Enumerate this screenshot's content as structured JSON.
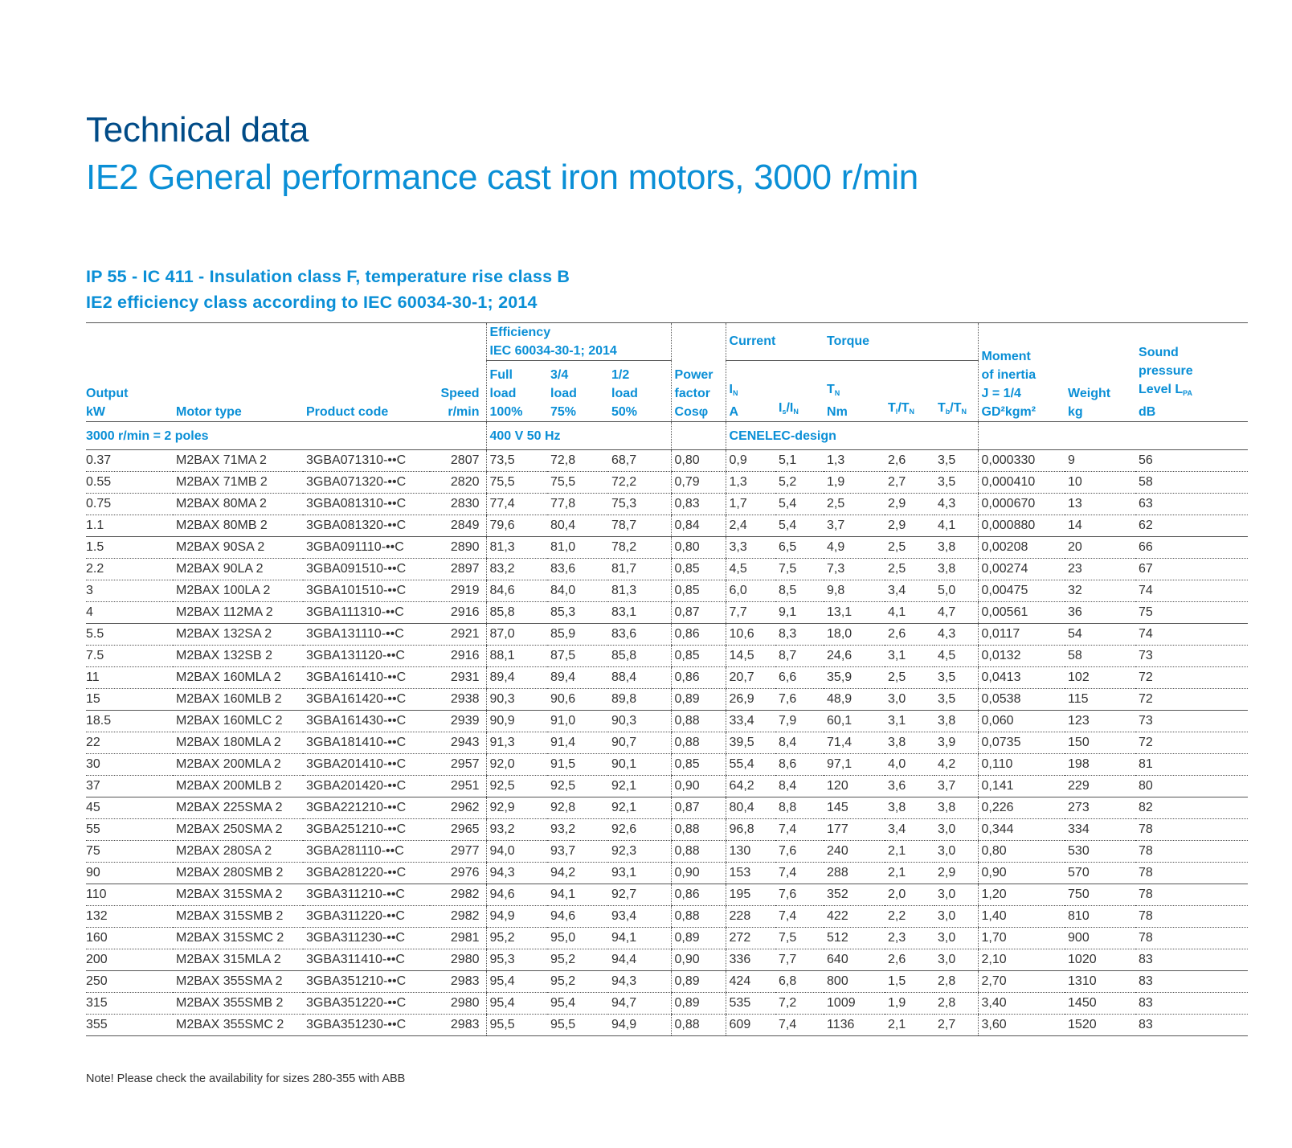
{
  "title": "Technical data",
  "subtitle": "IE2 General performance cast iron motors, 3000 r/min",
  "spec_lines": [
    "IP 55 - IC 411 - Insulation class F, temperature rise class B",
    "IE2 efficiency class according to IEC 60034-30-1; 2014"
  ],
  "headers": {
    "efficiency_group": "Efficiency",
    "efficiency_std": "IEC 60034-30-1; 2014",
    "current_group": "Current",
    "torque_group": "Torque",
    "output": [
      "Output",
      "kW"
    ],
    "motor_type": "Motor type",
    "product_code": "Product code",
    "speed": [
      "Speed",
      "r/min"
    ],
    "eff_full": [
      "Full",
      "load",
      "100%"
    ],
    "eff_34": [
      "3/4",
      "load",
      "75%"
    ],
    "eff_12": [
      "1/2",
      "load",
      "50%"
    ],
    "power_factor": [
      "Power",
      "factor",
      "Cosφ"
    ],
    "current_in": [
      "I",
      "N",
      "A"
    ],
    "current_is": [
      "I",
      "s",
      "/I",
      "N"
    ],
    "torque_tn": [
      "T",
      "N",
      "Nm"
    ],
    "torque_tl": [
      "T",
      "l",
      "/T",
      "N"
    ],
    "torque_tb": [
      "T",
      "b",
      "/T",
      "N"
    ],
    "moment": [
      "Moment",
      "of inertia",
      "J = 1/4",
      "GD²kgm²"
    ],
    "weight": [
      "Weight",
      "kg"
    ],
    "sound": [
      "Sound",
      "pressure",
      "Level L",
      "PA",
      "dB"
    ]
  },
  "section": {
    "poles": "3000 r/min = 2 poles",
    "supply": "400 V 50 Hz",
    "design": "CENELEC-design"
  },
  "rows": [
    [
      "0.37",
      "M2BAX 71MA 2",
      "3GBA071310-••C",
      "2807",
      "73,5",
      "72,8",
      "68,7",
      "0,80",
      "0,9",
      "5,1",
      "1,3",
      "2,6",
      "3,5",
      "0,000330",
      "9",
      "56"
    ],
    [
      "0.55",
      "M2BAX 71MB 2",
      "3GBA071320-••C",
      "2820",
      "75,5",
      "75,5",
      "72,2",
      "0,79",
      "1,3",
      "5,2",
      "1,9",
      "2,7",
      "3,5",
      "0,000410",
      "10",
      "58"
    ],
    [
      "0.75",
      "M2BAX 80MA 2",
      "3GBA081310-••C",
      "2830",
      "77,4",
      "77,8",
      "75,3",
      "0,83",
      "1,7",
      "5,4",
      "2,5",
      "2,9",
      "4,3",
      "0,000670",
      "13",
      "63"
    ],
    [
      "1.1",
      "M2BAX 80MB 2",
      "3GBA081320-••C",
      "2849",
      "79,6",
      "80,4",
      "78,7",
      "0,84",
      "2,4",
      "5,4",
      "3,7",
      "2,9",
      "4,1",
      "0,000880",
      "14",
      "62"
    ],
    [
      "1.5",
      "M2BAX 90SA 2",
      "3GBA091110-••C",
      "2890",
      "81,3",
      "81,0",
      "78,2",
      "0,80",
      "3,3",
      "6,5",
      "4,9",
      "2,5",
      "3,8",
      "0,00208",
      "20",
      "66"
    ],
    [
      "2.2",
      "M2BAX 90LA 2",
      "3GBA091510-••C",
      "2897",
      "83,2",
      "83,6",
      "81,7",
      "0,85",
      "4,5",
      "7,5",
      "7,3",
      "2,5",
      "3,8",
      "0,00274",
      "23",
      "67"
    ],
    [
      "3",
      "M2BAX 100LA 2",
      "3GBA101510-••C",
      "2919",
      "84,6",
      "84,0",
      "81,3",
      "0,85",
      "6,0",
      "8,5",
      "9,8",
      "3,4",
      "5,0",
      "0,00475",
      "32",
      "74"
    ],
    [
      "4",
      "M2BAX 112MA 2",
      "3GBA111310-••C",
      "2916",
      "85,8",
      "85,3",
      "83,1",
      "0,87",
      "7,7",
      "9,1",
      "13,1",
      "4,1",
      "4,7",
      "0,00561",
      "36",
      "75"
    ],
    [
      "5.5",
      "M2BAX 132SA 2",
      "3GBA131110-••C",
      "2921",
      "87,0",
      "85,9",
      "83,6",
      "0,86",
      "10,6",
      "8,3",
      "18,0",
      "2,6",
      "4,3",
      "0,0117",
      "54",
      "74"
    ],
    [
      "7.5",
      "M2BAX 132SB 2",
      "3GBA131120-••C",
      "2916",
      "88,1",
      "87,5",
      "85,8",
      "0,85",
      "14,5",
      "8,7",
      "24,6",
      "3,1",
      "4,5",
      "0,0132",
      "58",
      "73"
    ],
    [
      "11",
      "M2BAX 160MLA 2",
      "3GBA161410-••C",
      "2931",
      "89,4",
      "89,4",
      "88,4",
      "0,86",
      "20,7",
      "6,6",
      "35,9",
      "2,5",
      "3,5",
      "0,0413",
      "102",
      "72"
    ],
    [
      "15",
      "M2BAX 160MLB 2",
      "3GBA161420-••C",
      "2938",
      "90,3",
      "90,6",
      "89,8",
      "0,89",
      "26,9",
      "7,6",
      "48,9",
      "3,0",
      "3,5",
      "0,0538",
      "115",
      "72"
    ],
    [
      "18.5",
      "M2BAX 160MLC 2",
      "3GBA161430-••C",
      "2939",
      "90,9",
      "91,0",
      "90,3",
      "0,88",
      "33,4",
      "7,9",
      "60,1",
      "3,1",
      "3,8",
      "0,060",
      "123",
      "73"
    ],
    [
      "22",
      "M2BAX 180MLA 2",
      "3GBA181410-••C",
      "2943",
      "91,3",
      "91,4",
      "90,7",
      "0,88",
      "39,5",
      "8,4",
      "71,4",
      "3,8",
      "3,9",
      "0,0735",
      "150",
      "72"
    ],
    [
      "30",
      "M2BAX 200MLA 2",
      "3GBA201410-••C",
      "2957",
      "92,0",
      "91,5",
      "90,1",
      "0,85",
      "55,4",
      "8,6",
      "97,1",
      "4,0",
      "4,2",
      "0,110",
      "198",
      "81"
    ],
    [
      "37",
      "M2BAX 200MLB 2",
      "3GBA201420-••C",
      "2951",
      "92,5",
      "92,5",
      "92,1",
      "0,90",
      "64,2",
      "8,4",
      "120",
      "3,6",
      "3,7",
      "0,141",
      "229",
      "80"
    ],
    [
      "45",
      "M2BAX 225SMA 2",
      "3GBA221210-••C",
      "2962",
      "92,9",
      "92,8",
      "92,1",
      "0,87",
      "80,4",
      "8,8",
      "145",
      "3,8",
      "3,8",
      "0,226",
      "273",
      "82"
    ],
    [
      "55",
      "M2BAX 250SMA 2",
      "3GBA251210-••C",
      "2965",
      "93,2",
      "93,2",
      "92,6",
      "0,88",
      "96,8",
      "7,4",
      "177",
      "3,4",
      "3,0",
      "0,344",
      "334",
      "78"
    ],
    [
      "75",
      "M2BAX 280SA 2",
      "3GBA281110-••C",
      "2977",
      "94,0",
      "93,7",
      "92,3",
      "0,88",
      "130",
      "7,6",
      "240",
      "2,1",
      "3,0",
      "0,80",
      "530",
      "78"
    ],
    [
      "90",
      "M2BAX 280SMB 2",
      "3GBA281220-••C",
      "2976",
      "94,3",
      "94,2",
      "93,1",
      "0,90",
      "153",
      "7,4",
      "288",
      "2,1",
      "2,9",
      "0,90",
      "570",
      "78"
    ],
    [
      "110",
      "M2BAX 315SMA 2",
      "3GBA311210-••C",
      "2982",
      "94,6",
      "94,1",
      "92,7",
      "0,86",
      "195",
      "7,6",
      "352",
      "2,0",
      "3,0",
      "1,20",
      "750",
      "78"
    ],
    [
      "132",
      "M2BAX 315SMB 2",
      "3GBA311220-••C",
      "2982",
      "94,9",
      "94,6",
      "93,4",
      "0,88",
      "228",
      "7,4",
      "422",
      "2,2",
      "3,0",
      "1,40",
      "810",
      "78"
    ],
    [
      "160",
      "M2BAX 315SMC 2",
      "3GBA311230-••C",
      "2981",
      "95,2",
      "95,0",
      "94,1",
      "0,89",
      "272",
      "7,5",
      "512",
      "2,3",
      "3,0",
      "1,70",
      "900",
      "78"
    ],
    [
      "200",
      "M2BAX 315MLA 2",
      "3GBA311410-••C",
      "2980",
      "95,3",
      "95,2",
      "94,4",
      "0,90",
      "336",
      "7,7",
      "640",
      "2,6",
      "3,0",
      "2,10",
      "1020",
      "83"
    ],
    [
      "250",
      "M2BAX 355SMA 2",
      "3GBA351210-••C",
      "2983",
      "95,4",
      "95,2",
      "94,3",
      "0,89",
      "424",
      "6,8",
      "800",
      "1,5",
      "2,8",
      "2,70",
      "1310",
      "83"
    ],
    [
      "315",
      "M2BAX 355SMB 2",
      "3GBA351220-••C",
      "2980",
      "95,4",
      "95,4",
      "94,7",
      "0,89",
      "535",
      "7,2",
      "1009",
      "1,9",
      "2,8",
      "3,40",
      "1450",
      "83"
    ],
    [
      "355",
      "M2BAX 355SMC 2",
      "3GBA351230-••C",
      "2983",
      "95,5",
      "95,5",
      "94,9",
      "0,88",
      "609",
      "7,4",
      "1136",
      "2,1",
      "2,7",
      "3,60",
      "1520",
      "83"
    ]
  ],
  "note": "Note! Please check the availability for sizes 280-355 with ABB",
  "colors": {
    "dark_blue": "#004b87",
    "accent_blue": "#0a8fd6",
    "text": "#333333"
  }
}
